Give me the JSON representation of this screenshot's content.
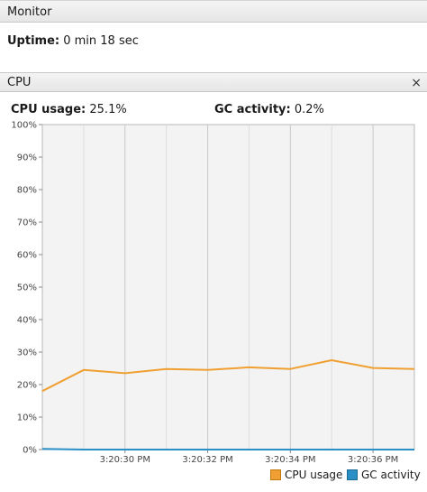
{
  "monitor": {
    "title": "Monitor"
  },
  "uptime": {
    "label": "Uptime:",
    "value": "0 min 18 sec"
  },
  "cpu_panel": {
    "title": "CPU",
    "close_glyph": "×",
    "cpu_usage_label": "CPU usage:",
    "cpu_usage_value": "25.1%",
    "gc_activity_label": "GC activity:",
    "gc_activity_value": "0.2%"
  },
  "colors": {
    "cpu_usage": "#f0a032",
    "gc_activity": "#2a8fc4"
  },
  "chart_data": {
    "type": "line",
    "ylim": [
      0,
      100
    ],
    "y_ticks": [
      "0%",
      "10%",
      "20%",
      "30%",
      "40%",
      "50%",
      "60%",
      "70%",
      "80%",
      "90%",
      "100%"
    ],
    "x_tick_labels": [
      "3:20:30 PM",
      "3:20:32 PM",
      "3:20:34 PM",
      "3:20:36 PM"
    ],
    "xlim": [
      0,
      18
    ],
    "x_tick_positions": [
      4,
      8,
      12,
      16
    ],
    "x_grid_positions": [
      2,
      4,
      6,
      8,
      10,
      12,
      14,
      16
    ],
    "grid": true,
    "legend_position": "bottom-right",
    "series": [
      {
        "name": "CPU usage",
        "x": [
          0,
          2,
          4,
          6,
          8,
          10,
          12,
          14,
          16,
          18
        ],
        "values": [
          18,
          24.5,
          23.5,
          24.8,
          24.5,
          25.3,
          24.8,
          27.5,
          25.1,
          24.8
        ]
      },
      {
        "name": "GC activity",
        "x": [
          0,
          2,
          4,
          6,
          8,
          10,
          12,
          14,
          16,
          18
        ],
        "values": [
          0.2,
          0,
          0,
          0,
          0,
          0,
          0,
          0,
          0,
          0
        ]
      }
    ]
  }
}
